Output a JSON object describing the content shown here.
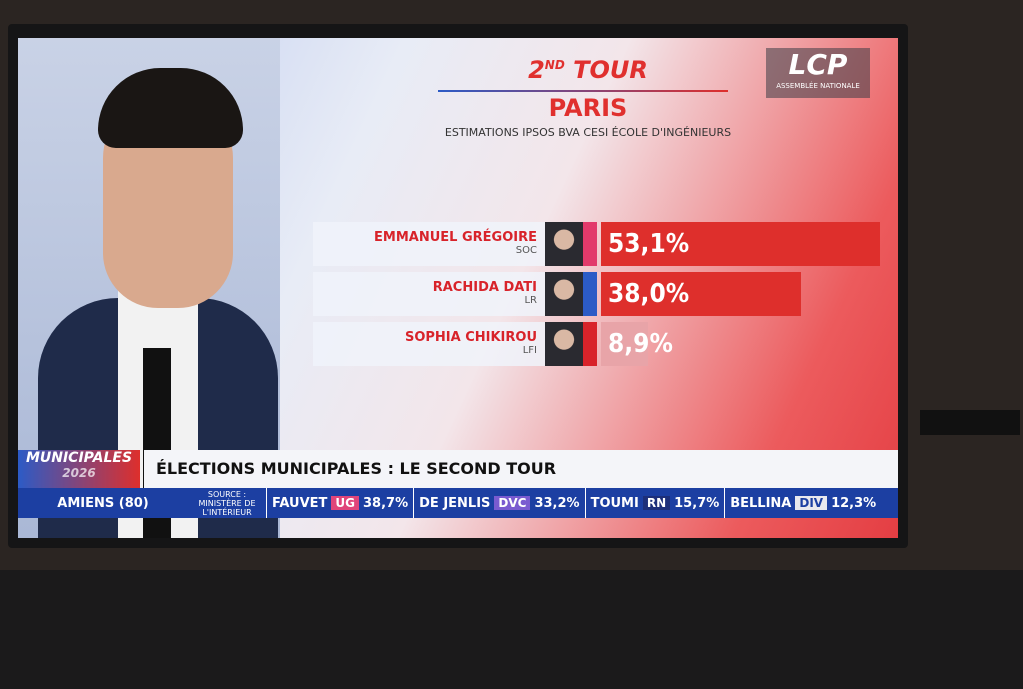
{
  "header": {
    "round": {
      "number": "2",
      "suffix": "ND",
      "word": "TOUR"
    },
    "city": "PARIS",
    "subtitle": "ESTIMATIONS IPSOS BVA CESI ÉCOLE D'INGÉNIEURS"
  },
  "logo": {
    "name": "LCP",
    "tagline": "ASSEMBLÉE NATIONALE"
  },
  "results": {
    "max": 53.1,
    "candidates": [
      {
        "name": "EMMANUEL GRÉGOIRE",
        "party": "SOC",
        "value": 53.1,
        "value_label": "53,1%",
        "party_color": "#e23a6b",
        "bar_color": "#de2f2c"
      },
      {
        "name": "RACHIDA DATI",
        "party": "LR",
        "value": 38.0,
        "value_label": "38,0%",
        "party_color": "#2c5bc6",
        "bar_color": "#de2f2c"
      },
      {
        "name": "SOPHIA CHIKIROU",
        "party": "LFI",
        "value": 8.9,
        "value_label": "8,9%",
        "party_color": "#d8232a",
        "bar_color": "#e8a4a8"
      }
    ]
  },
  "banner": {
    "label": "MUNICIPALES",
    "year": "2026",
    "headline": "ÉLECTIONS MUNICIPALES : LE SECOND TOUR"
  },
  "ticker": {
    "city": "AMIENS (80)",
    "source": "SOURCE : MINISTÈRE DE L'INTÉRIEUR",
    "entries": [
      {
        "name": "FAUVET",
        "party": "UG",
        "result": "38,7%",
        "party_color": "#e0457a"
      },
      {
        "name": "DE JENLIS",
        "party": "DVC",
        "result": "33,2%",
        "party_color": "#7a5bd0"
      },
      {
        "name": "TOUMI",
        "party": "RN",
        "result": "15,7%",
        "party_color": "#1d2f7a"
      },
      {
        "name": "BELLINA",
        "party": "DIV",
        "result": "12,3%",
        "party_color": "#e8e8ee"
      }
    ]
  }
}
